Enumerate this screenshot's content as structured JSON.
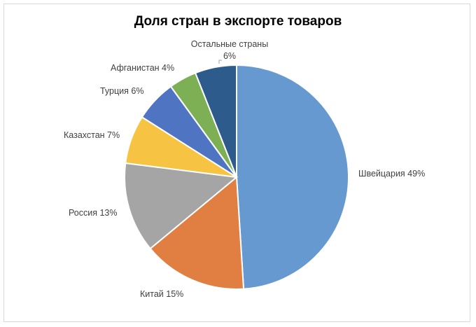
{
  "chart_data": {
    "type": "pie",
    "title": "Доля стран в экспорте товаров",
    "start_angle_deg": 0,
    "direction": "clockwise",
    "slices": [
      {
        "name": "Швейцария",
        "value": 49,
        "label": "Швейцария 49%",
        "color": "#6699CF"
      },
      {
        "name": "Китай",
        "value": 15,
        "label": "Китай 15%",
        "color": "#E07F41"
      },
      {
        "name": "Россия",
        "value": 13,
        "label": "Россия 13%",
        "color": "#A5A5A5"
      },
      {
        "name": "Казахстан",
        "value": 7,
        "label": "Казахстан 7%",
        "color": "#F7C343"
      },
      {
        "name": "Турция",
        "value": 6,
        "label": "Турция 6%",
        "color": "#4E74C2"
      },
      {
        "name": "Афганистан",
        "value": 4,
        "label": "Афганистан 4%",
        "color": "#7DAF54"
      },
      {
        "name": "Остальные страны",
        "value": 6,
        "label_lines": [
          "Остальные страны",
          "6%"
        ],
        "color": "#2D5C8C"
      }
    ],
    "legend": "none",
    "data_labels": "outside"
  }
}
